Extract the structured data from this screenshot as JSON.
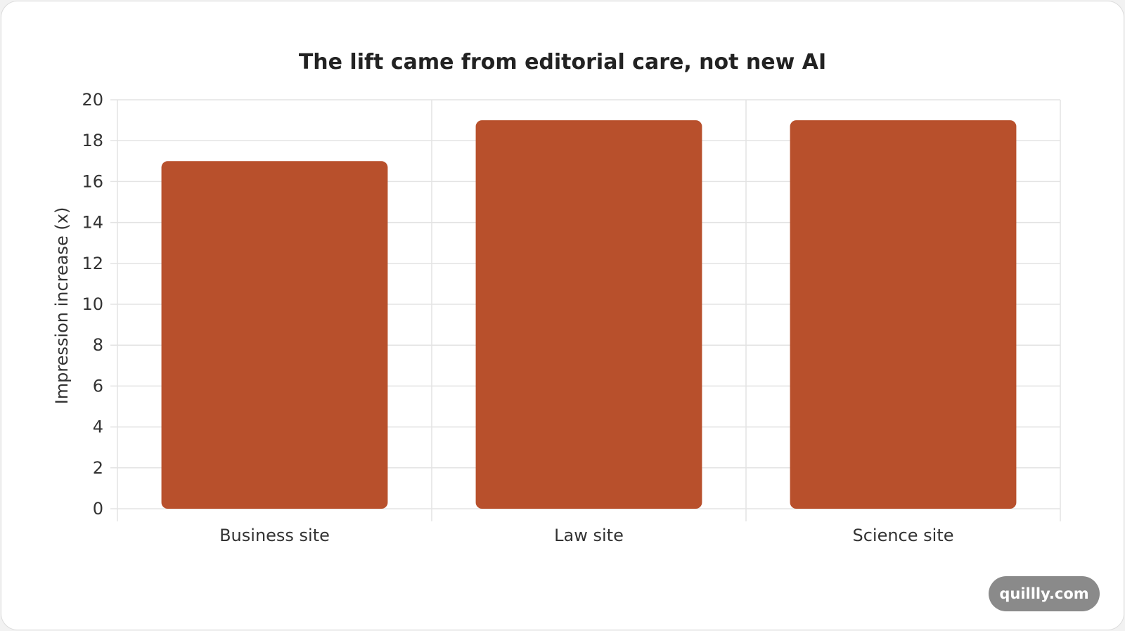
{
  "chart_data": {
    "type": "bar",
    "title": "The lift came from editorial care, not new AI",
    "categories": [
      "Business site",
      "Law site",
      "Science site"
    ],
    "values": [
      17,
      19,
      19
    ],
    "xlabel": "",
    "ylabel": "Impression increase (x)",
    "ylim": [
      0,
      20
    ],
    "yticks": [
      0,
      2,
      4,
      6,
      8,
      10,
      12,
      14,
      16,
      18,
      20
    ],
    "grid": true,
    "legend": "none",
    "bar_color": "#b8502c"
  },
  "watermark": {
    "text": "quillly.com"
  }
}
